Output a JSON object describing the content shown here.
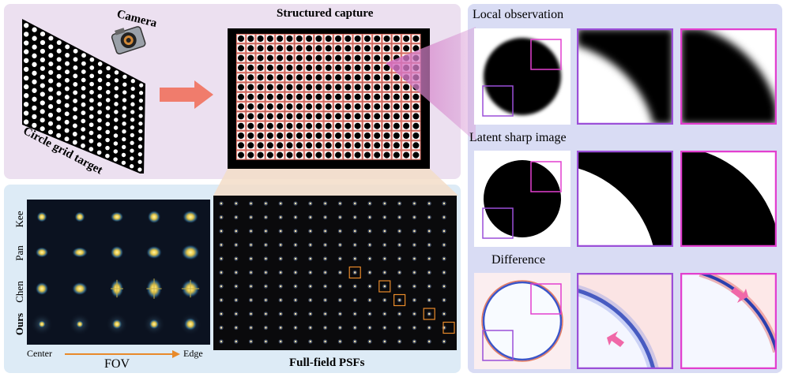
{
  "capture": {
    "title": "Structured capture",
    "camera_label": "Camera",
    "target_label": "Circle grid target"
  },
  "psf_panel": {
    "methods": [
      "Kee",
      "Pan",
      "Chen",
      "Ours"
    ],
    "fov_center": "Center",
    "fov_edge": "Edge",
    "fov_label": "FOV",
    "fullfield_title": "Full-field PSFs"
  },
  "observation": {
    "local_title": "Local observation",
    "latent_title": "Latent sharp image",
    "difference_title": "Difference"
  },
  "colors": {
    "panel_capture": "#ece0f0",
    "panel_psf": "#ddebf6",
    "panel_obs": "#d9dcf4",
    "arrow": "#f07c6c",
    "crop_purple": "#9b4fd8",
    "crop_magenta": "#e23fcf",
    "highlight_orange": "#e88a2a"
  }
}
